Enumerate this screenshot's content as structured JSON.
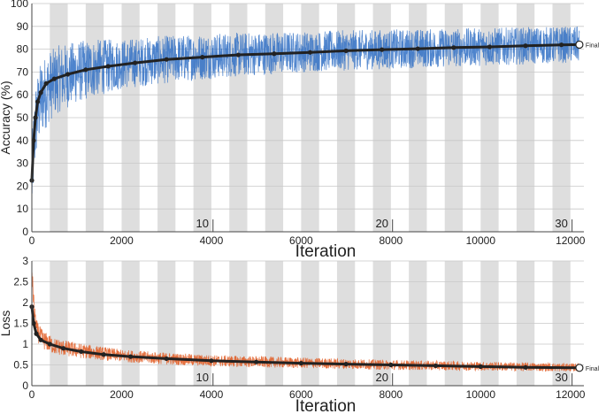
{
  "chart_data": [
    {
      "type": "line",
      "title": "",
      "xlabel": "Iteration",
      "ylabel": "Accuracy (%)",
      "xlim": [
        0,
        12300
      ],
      "ylim": [
        0,
        100
      ],
      "x_ticks": [
        0,
        2000,
        4000,
        6000,
        8000,
        10000,
        12000
      ],
      "y_ticks": [
        0,
        10,
        20,
        30,
        40,
        50,
        60,
        70,
        80,
        90,
        100
      ],
      "epoch_labels": [
        {
          "label": "10",
          "x": 3800
        },
        {
          "label": "20",
          "x": 7800
        },
        {
          "label": "30",
          "x": 11800
        }
      ],
      "final_label": "Final",
      "shaded_bands": true,
      "series": [
        {
          "role": "training",
          "color": "#2f6fc4",
          "mean": [
            [
              0,
              22
            ],
            [
              50,
              40
            ],
            [
              100,
              50
            ],
            [
              200,
              58
            ],
            [
              400,
              64
            ],
            [
              600,
              67
            ],
            [
              1000,
              70
            ],
            [
              1500,
              72
            ],
            [
              2000,
              73.5
            ],
            [
              3000,
              75.5
            ],
            [
              4000,
              77
            ],
            [
              5000,
              78
            ],
            [
              6000,
              78.8
            ],
            [
              7000,
              79.5
            ],
            [
              8000,
              80
            ],
            [
              9000,
              80.5
            ],
            [
              10000,
              81
            ],
            [
              11000,
              81.5
            ],
            [
              12000,
              82
            ]
          ],
          "spread": [
            [
              0,
              18
            ],
            [
              500,
              15
            ],
            [
              2000,
              11
            ],
            [
              6000,
              9
            ],
            [
              12000,
              8
            ]
          ]
        },
        {
          "role": "smoothed",
          "color": "#222222",
          "points": [
            [
              0,
              22.5
            ],
            [
              40,
              40
            ],
            [
              80,
              50
            ],
            [
              130,
              57
            ],
            [
              200,
              61
            ],
            [
              320,
              65
            ],
            [
              500,
              67
            ],
            [
              800,
              69
            ],
            [
              1200,
              71
            ],
            [
              1700,
              72.5
            ],
            [
              2300,
              74
            ],
            [
              3000,
              75.5
            ],
            [
              3800,
              76.5
            ],
            [
              4600,
              77.5
            ],
            [
              5400,
              78
            ],
            [
              6200,
              78.6
            ],
            [
              7000,
              79.3
            ],
            [
              7800,
              79.8
            ],
            [
              8600,
              80.2
            ],
            [
              9400,
              80.7
            ],
            [
              10200,
              81
            ],
            [
              11000,
              81.5
            ],
            [
              11800,
              81.9
            ],
            [
              12200,
              82
            ]
          ]
        }
      ]
    },
    {
      "type": "line",
      "title": "",
      "xlabel": "Iteration",
      "ylabel": "Loss",
      "xlim": [
        0,
        12300
      ],
      "ylim": [
        0,
        3
      ],
      "x_ticks": [
        0,
        2000,
        4000,
        6000,
        8000,
        10000,
        12000
      ],
      "y_ticks": [
        0,
        0.5,
        1,
        1.5,
        2,
        2.5,
        3
      ],
      "epoch_labels": [
        {
          "label": "10",
          "x": 3800
        },
        {
          "label": "20",
          "x": 7800
        },
        {
          "label": "30",
          "x": 11800
        }
      ],
      "final_label": "Final",
      "shaded_bands": true,
      "series": [
        {
          "role": "training",
          "color": "#e0581e",
          "mean": [
            [
              0,
              2.8
            ],
            [
              30,
              2.2
            ],
            [
              60,
              1.7
            ],
            [
              120,
              1.3
            ],
            [
              250,
              1.1
            ],
            [
              500,
              0.95
            ],
            [
              1000,
              0.85
            ],
            [
              2000,
              0.72
            ],
            [
              3000,
              0.65
            ],
            [
              4000,
              0.6
            ],
            [
              6000,
              0.55
            ],
            [
              8000,
              0.5
            ],
            [
              10000,
              0.47
            ],
            [
              12000,
              0.44
            ]
          ],
          "spread": [
            [
              0,
              0.25
            ],
            [
              500,
              0.2
            ],
            [
              2000,
              0.15
            ],
            [
              12000,
              0.1
            ]
          ]
        },
        {
          "role": "smoothed",
          "color": "#222222",
          "points": [
            [
              0,
              1.9
            ],
            [
              40,
              1.5
            ],
            [
              100,
              1.25
            ],
            [
              200,
              1.1
            ],
            [
              400,
              1.0
            ],
            [
              700,
              0.9
            ],
            [
              1100,
              0.82
            ],
            [
              1600,
              0.75
            ],
            [
              2200,
              0.7
            ],
            [
              3000,
              0.65
            ],
            [
              4000,
              0.6
            ],
            [
              5000,
              0.57
            ],
            [
              6000,
              0.54
            ],
            [
              7000,
              0.52
            ],
            [
              8000,
              0.5
            ],
            [
              9000,
              0.48
            ],
            [
              10000,
              0.46
            ],
            [
              11000,
              0.44
            ],
            [
              12200,
              0.43
            ]
          ]
        }
      ]
    }
  ]
}
